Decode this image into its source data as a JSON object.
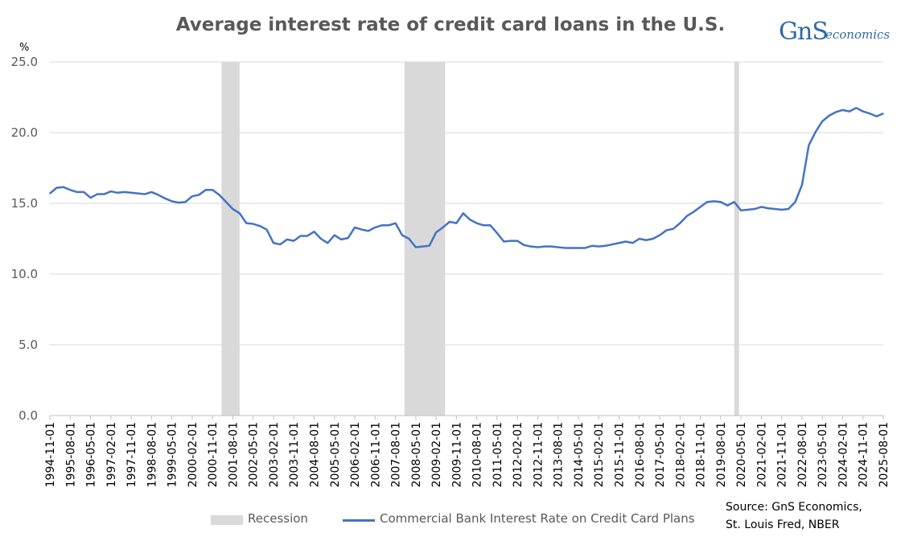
{
  "title": "Average interest rate of credit card loans in the U.S.",
  "logo": {
    "text1": "GnS",
    "text2": "economics"
  },
  "source": {
    "line1": "Source: GnS Economics,",
    "line2": "St. Louis Fred, NBER"
  },
  "legend": {
    "recession": "Recession",
    "series": "Commercial Bank Interest Rate on Credit Card Plans"
  },
  "colors": {
    "line": "#4472c4",
    "recession": "#d9d9d9",
    "grid": "#d9d9d9",
    "text": "#595959"
  },
  "chart_data": {
    "type": "line",
    "ylabel": "%",
    "ylim": [
      0,
      25
    ],
    "yticks": [
      "0.0",
      "5.0",
      "10.0",
      "15.0",
      "20.0",
      "25.0"
    ],
    "xticks": [
      "1994-11-01",
      "1995-08-01",
      "1996-05-01",
      "1997-02-01",
      "1997-11-01",
      "1998-08-01",
      "1999-05-01",
      "2000-02-01",
      "2000-11-01",
      "2001-08-01",
      "2002-05-01",
      "2003-02-01",
      "2003-11-01",
      "2004-08-01",
      "2005-05-01",
      "2006-02-01",
      "2006-11-01",
      "2007-08-01",
      "2008-05-01",
      "2009-02-01",
      "2009-11-01",
      "2010-08-01",
      "2011-05-01",
      "2012-02-01",
      "2012-11-01",
      "2013-08-01",
      "2014-05-01",
      "2015-02-01",
      "2015-11-01",
      "2016-08-01",
      "2017-05-01",
      "2018-02-01",
      "2018-11-01",
      "2019-08-01",
      "2020-05-01",
      "2021-02-01",
      "2021-11-01",
      "2022-08-01",
      "2023-05-01",
      "2024-02-01",
      "2024-11-01",
      "2025-08-01"
    ],
    "grid": "horizontal",
    "legend_position": "bottom",
    "recessions": [
      {
        "start": "2001-03-01",
        "end": "2001-11-01"
      },
      {
        "start": "2007-12-01",
        "end": "2009-06-01"
      },
      {
        "start": "2020-02-01",
        "end": "2020-04-01"
      }
    ],
    "series": [
      {
        "name": "Commercial Bank Interest Rate on Credit Card Plans",
        "x": [
          "1994-11-01",
          "1995-02-01",
          "1995-05-01",
          "1995-08-01",
          "1995-11-01",
          "1996-02-01",
          "1996-05-01",
          "1996-08-01",
          "1996-11-01",
          "1997-02-01",
          "1997-05-01",
          "1997-08-01",
          "1997-11-01",
          "1998-02-01",
          "1998-05-01",
          "1998-08-01",
          "1998-11-01",
          "1999-02-01",
          "1999-05-01",
          "1999-08-01",
          "1999-11-01",
          "2000-02-01",
          "2000-05-01",
          "2000-08-01",
          "2000-11-01",
          "2001-02-01",
          "2001-05-01",
          "2001-08-01",
          "2001-11-01",
          "2002-02-01",
          "2002-05-01",
          "2002-08-01",
          "2002-11-01",
          "2003-02-01",
          "2003-05-01",
          "2003-08-01",
          "2003-11-01",
          "2004-02-01",
          "2004-05-01",
          "2004-08-01",
          "2004-11-01",
          "2005-02-01",
          "2005-05-01",
          "2005-08-01",
          "2005-11-01",
          "2006-02-01",
          "2006-05-01",
          "2006-08-01",
          "2006-11-01",
          "2007-02-01",
          "2007-05-01",
          "2007-08-01",
          "2007-11-01",
          "2008-02-01",
          "2008-05-01",
          "2008-08-01",
          "2008-11-01",
          "2009-02-01",
          "2009-05-01",
          "2009-08-01",
          "2009-11-01",
          "2010-02-01",
          "2010-05-01",
          "2010-08-01",
          "2010-11-01",
          "2011-02-01",
          "2011-05-01",
          "2011-08-01",
          "2011-11-01",
          "2012-02-01",
          "2012-05-01",
          "2012-08-01",
          "2012-11-01",
          "2013-02-01",
          "2013-05-01",
          "2013-08-01",
          "2013-11-01",
          "2014-02-01",
          "2014-05-01",
          "2014-08-01",
          "2014-11-01",
          "2015-02-01",
          "2015-05-01",
          "2015-08-01",
          "2015-11-01",
          "2016-02-01",
          "2016-05-01",
          "2016-08-01",
          "2016-11-01",
          "2017-02-01",
          "2017-05-01",
          "2017-08-01",
          "2017-11-01",
          "2018-02-01",
          "2018-05-01",
          "2018-08-01",
          "2018-11-01",
          "2019-02-01",
          "2019-05-01",
          "2019-08-01",
          "2019-11-01",
          "2020-02-01",
          "2020-05-01",
          "2020-08-01",
          "2020-11-01",
          "2021-02-01",
          "2021-05-01",
          "2021-08-01",
          "2021-11-01",
          "2022-02-01",
          "2022-05-01",
          "2022-08-01",
          "2022-11-01",
          "2023-02-01",
          "2023-05-01",
          "2023-08-01",
          "2023-11-01",
          "2024-02-01",
          "2024-05-01",
          "2024-08-01",
          "2024-11-01",
          "2025-02-01",
          "2025-05-01",
          "2025-08-01"
        ],
        "values": [
          15.7,
          16.1,
          16.15,
          15.95,
          15.8,
          15.8,
          15.4,
          15.65,
          15.65,
          15.85,
          15.75,
          15.8,
          15.75,
          15.7,
          15.65,
          15.8,
          15.6,
          15.35,
          15.15,
          15.05,
          15.1,
          15.5,
          15.6,
          15.95,
          15.95,
          15.6,
          15.1,
          14.6,
          14.3,
          13.6,
          13.55,
          13.4,
          13.15,
          12.2,
          12.1,
          12.45,
          12.35,
          12.7,
          12.7,
          13.0,
          12.5,
          12.2,
          12.75,
          12.45,
          12.55,
          13.3,
          13.15,
          13.05,
          13.3,
          13.45,
          13.45,
          13.6,
          12.75,
          12.5,
          11.9,
          11.95,
          12.0,
          12.95,
          13.3,
          13.7,
          13.6,
          14.3,
          13.85,
          13.6,
          13.45,
          13.45,
          12.9,
          12.3,
          12.35,
          12.35,
          12.05,
          11.95,
          11.9,
          11.95,
          11.95,
          11.9,
          11.85,
          11.85,
          11.85,
          11.85,
          12.0,
          11.95,
          12.0,
          12.1,
          12.2,
          12.3,
          12.2,
          12.5,
          12.4,
          12.5,
          12.75,
          13.1,
          13.2,
          13.6,
          14.1,
          14.4,
          14.75,
          15.1,
          15.15,
          15.1,
          14.85,
          15.1,
          14.5,
          14.55,
          14.6,
          14.75,
          14.65,
          14.6,
          14.55,
          14.6,
          15.1,
          16.3,
          19.1,
          20.05,
          20.8,
          21.2,
          21.45,
          21.6,
          21.5,
          21.75,
          21.5,
          21.35,
          21.15,
          21.35
        ]
      }
    ]
  }
}
